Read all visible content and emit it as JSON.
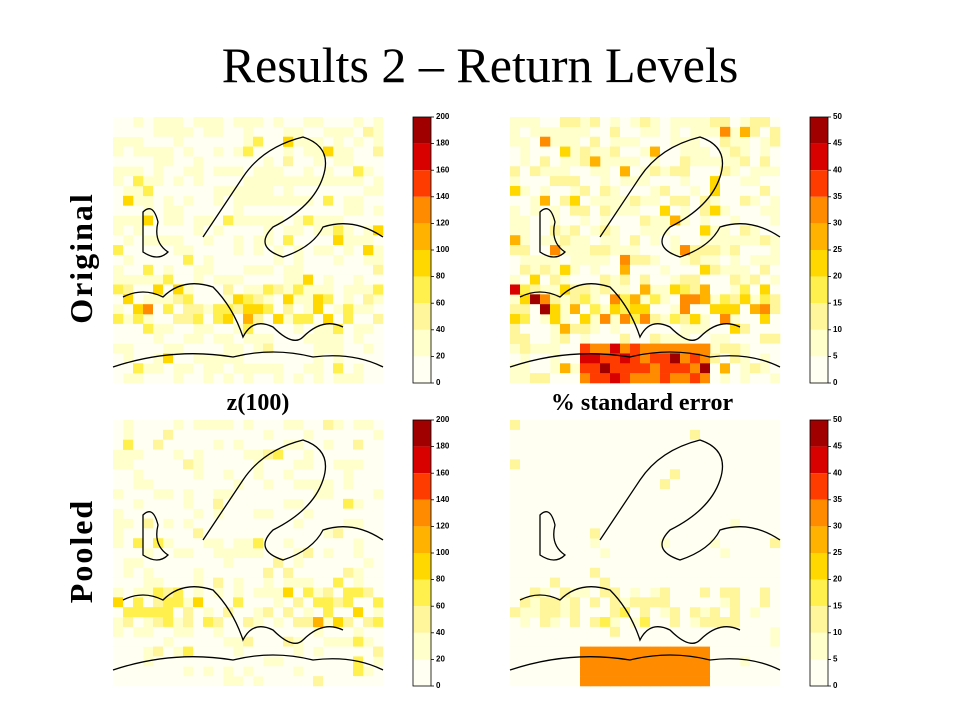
{
  "title": "Results 2 – Return Levels",
  "rows": [
    "Original",
    "Pooled"
  ],
  "columns": [
    "z(100)",
    "% standard error"
  ],
  "colorbars": [
    [
      200,
      180,
      160,
      140,
      120,
      100,
      80,
      60,
      40,
      20,
      0
    ],
    [
      50,
      45,
      40,
      35,
      30,
      25,
      20,
      15,
      10,
      5,
      0
    ],
    [
      200,
      180,
      160,
      140,
      120,
      100,
      80,
      60,
      40,
      20,
      0
    ],
    [
      50,
      45,
      40,
      35,
      30,
      25,
      20,
      15,
      10,
      5,
      0
    ]
  ]
}
